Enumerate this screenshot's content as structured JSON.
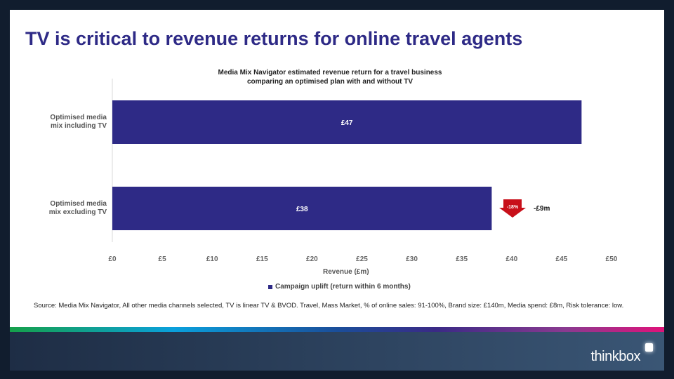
{
  "title": "TV is critical to revenue returns for online travel agents",
  "source": "Source: Media Mix Navigator, All other media channels selected, TV is linear TV & BVOD. Travel, Mass Market, % of online sales: 91-100%, Brand size: £140m, Media spend: £8m, Risk tolerance: low.",
  "logo": "thinkbox",
  "chart_data": {
    "type": "bar",
    "orientation": "horizontal",
    "title": "Media Mix Navigator estimated revenue return for a travel business comparing an optimised plan with and without TV",
    "title_lines": [
      "Media Mix Navigator estimated revenue return for a travel business",
      "comparing an optimised plan with and without TV"
    ],
    "categories": [
      "Optimised media mix including TV",
      "Optimised media mix excluding TV"
    ],
    "category_lines": [
      [
        "Optimised media",
        "mix including TV"
      ],
      [
        "Optimised media",
        "mix excluding TV"
      ]
    ],
    "series": [
      {
        "name": "Campaign uplift (return within 6 months)",
        "values": [
          47,
          38
        ],
        "labels": [
          "£47",
          "£38"
        ],
        "color": "#2e2a86"
      }
    ],
    "xlabel": "Revenue (£m)",
    "xlim": [
      0,
      50
    ],
    "xticks": [
      "£0",
      "£5",
      "£10",
      "£15",
      "£20",
      "£25",
      "£30",
      "£35",
      "£40",
      "£45",
      "£50"
    ],
    "grid": false,
    "legend": "bottom",
    "annotation": {
      "arrow_label": "-18%",
      "text": "-£9m",
      "color": "#c8101a"
    }
  }
}
